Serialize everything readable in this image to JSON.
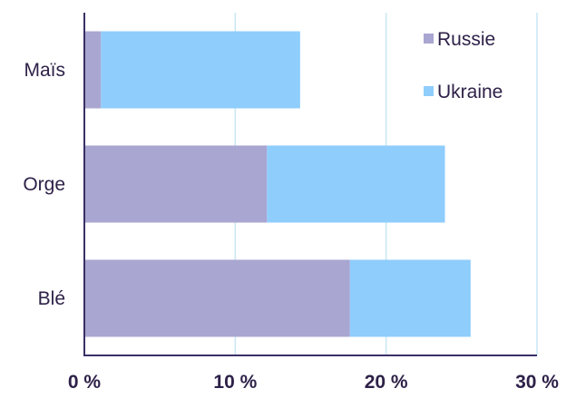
{
  "chart_data": {
    "type": "bar",
    "orientation": "horizontal",
    "stacked": true,
    "categories": [
      "Maïs",
      "Orge",
      "Blé"
    ],
    "series": [
      {
        "name": "Russie",
        "values": [
          1.1,
          12.1,
          17.6
        ],
        "color": "#a9a6d1"
      },
      {
        "name": "Ukraine",
        "values": [
          13.2,
          11.8,
          8.0
        ],
        "color": "#8fcdfc"
      }
    ],
    "xlim": [
      0,
      30
    ],
    "x_ticks": [
      0,
      10,
      20,
      30
    ],
    "x_tick_labels": [
      "0 %",
      "10 %",
      "20 %",
      "30 %"
    ],
    "grid": "vertical",
    "grid_color": "#c9e7f5",
    "axis_color": "#3a2f66",
    "legend": {
      "position": "top-right",
      "entries": [
        "Russie",
        "Ukraine"
      ]
    },
    "title": "",
    "xlabel": "",
    "ylabel": ""
  }
}
